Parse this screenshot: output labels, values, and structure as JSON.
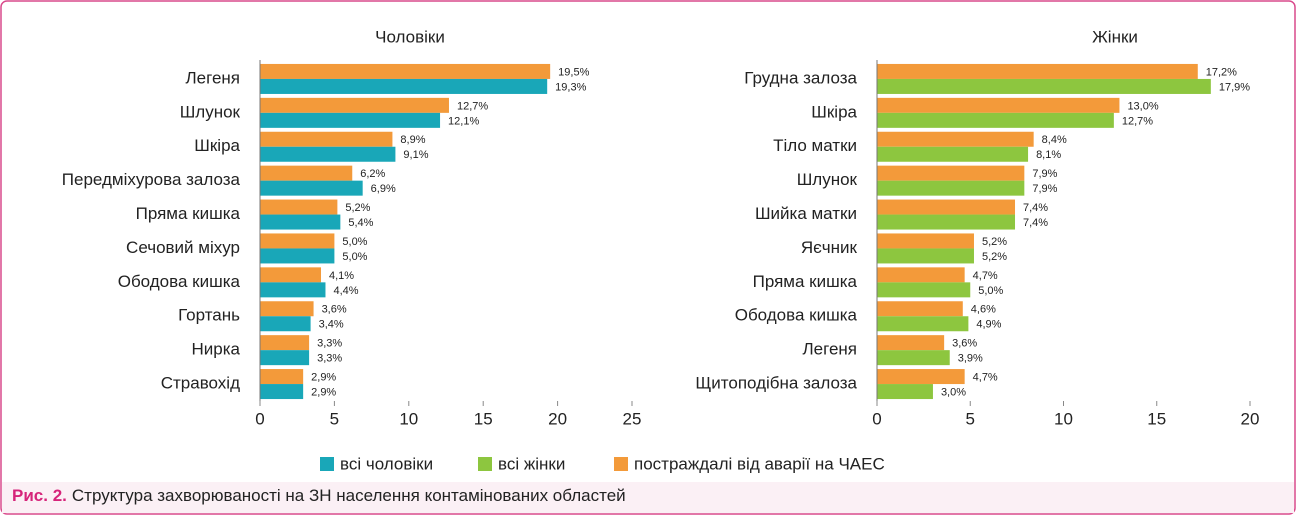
{
  "chart_data": [
    {
      "type": "bar",
      "horizontal": true,
      "title": "Чоловіки",
      "categories": [
        "Легеня",
        "Шлунок",
        "Шкіра",
        "Передміхурова залоза",
        "Пряма кишка",
        "Сечовий міхур",
        "Ободова кишка",
        "Гортань",
        "Нирка",
        "Стравохід"
      ],
      "series": [
        {
          "name": "постраждалі від аварії на ЧАЕС",
          "color": "#f39a3a",
          "values": [
            19.5,
            12.7,
            8.9,
            6.2,
            5.2,
            5.0,
            4.1,
            3.6,
            3.3,
            2.9
          ],
          "value_labels": [
            "19,5%",
            "12,7%",
            "8,9%",
            "6,2%",
            "5,2%",
            "5,0%",
            "4,1%",
            "3,6%",
            "3,3%",
            "2,9%"
          ]
        },
        {
          "name": "всі чоловіки",
          "color": "#19a7b8",
          "values": [
            19.3,
            12.1,
            9.1,
            6.9,
            5.4,
            5.0,
            4.4,
            3.4,
            3.3,
            2.9
          ],
          "value_labels": [
            "19,3%",
            "12,1%",
            "9,1%",
            "6,9%",
            "5,4%",
            "5,0%",
            "4,4%",
            "3,4%",
            "3,3%",
            "2,9%"
          ]
        }
      ],
      "xlim": [
        0,
        25
      ],
      "xticks": [
        0,
        5,
        10,
        15,
        20,
        25
      ]
    },
    {
      "type": "bar",
      "horizontal": true,
      "title": "Жінки",
      "categories": [
        "Грудна залоза",
        "Шкіра",
        "Тіло матки",
        "Шлунок",
        "Шийка матки",
        "Яєчник",
        "Пряма кишка",
        "Ободова кишка",
        "Легеня",
        "Щитоподібна залоза"
      ],
      "series": [
        {
          "color": "#f39a3a",
          "values": [
            17.2,
            13.0,
            8.4,
            7.9,
            7.4,
            5.2,
            4.7,
            4.6,
            3.6,
            4.7
          ],
          "value_labels": [
            "17,2%",
            "13,0%",
            "8,4%",
            "7,9%",
            "7,4%",
            "5,2%",
            "4,7%",
            "4,6%",
            "3,6%",
            "4,7%"
          ]
        },
        {
          "name": "всі жінки",
          "color": "#8dc63f",
          "values": [
            17.9,
            12.7,
            8.1,
            7.9,
            7.4,
            5.2,
            5.0,
            4.9,
            3.9,
            3.0
          ],
          "value_labels": [
            "17,9%",
            "12,7%",
            "8,1%",
            "7,9%",
            "7,4%",
            "5,2%",
            "5,0%",
            "4,9%",
            "3,9%",
            "3,0%"
          ]
        }
      ],
      "xlim": [
        0,
        20
      ],
      "xticks": [
        0,
        5,
        10,
        15,
        20
      ]
    }
  ],
  "caption": {
    "label": "Рис. 2.",
    "text": "Структура захворюваності на ЗН населення контамінованих областей"
  }
}
